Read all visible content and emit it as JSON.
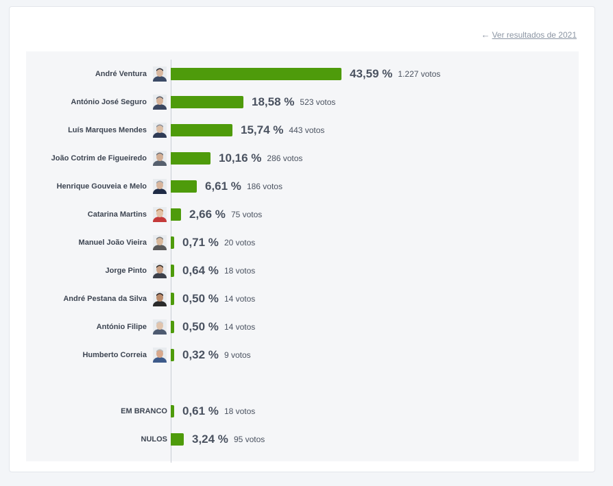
{
  "header": {
    "back_link_label": "Ver resultados de 2021"
  },
  "colors": {
    "bar": "#4e9b0b",
    "label": "#3c4451",
    "link": "#8b95a3"
  },
  "chart_data": {
    "type": "bar",
    "orientation": "horizontal",
    "title": "",
    "xlabel": "",
    "ylabel": "",
    "xlim": [
      0,
      43.59
    ],
    "grid": false,
    "categories": [
      "André Ventura",
      "António José Seguro",
      "Luís Marques Mendes",
      "João Cotrim de Figueiredo",
      "Henrique Gouveia e Melo",
      "Catarina Martins",
      "Manuel João Vieira",
      "Jorge Pinto",
      "André Pestana da Silva",
      "António Filipe",
      "Humberto Correia",
      "EM BRANCO",
      "NULOS"
    ],
    "values": [
      43.59,
      18.58,
      15.74,
      10.16,
      6.61,
      2.66,
      0.71,
      0.64,
      0.5,
      0.5,
      0.32,
      0.61,
      3.24
    ],
    "rows": [
      {
        "name": "André Ventura",
        "pct": "43,59 %",
        "votes": "1.227 votos",
        "value": 43.59,
        "avatar": "candidate-photo",
        "group": "candidate"
      },
      {
        "name": "António José Seguro",
        "pct": "18,58 %",
        "votes": "523 votos",
        "value": 18.58,
        "avatar": "candidate-photo",
        "group": "candidate"
      },
      {
        "name": "Luís Marques Mendes",
        "pct": "15,74 %",
        "votes": "443 votos",
        "value": 15.74,
        "avatar": "candidate-photo",
        "group": "candidate"
      },
      {
        "name": "João Cotrim de Figueiredo",
        "pct": "10,16 %",
        "votes": "286 votos",
        "value": 10.16,
        "avatar": "candidate-photo",
        "group": "candidate"
      },
      {
        "name": "Henrique Gouveia e Melo",
        "pct": "6,61 %",
        "votes": "186 votos",
        "value": 6.61,
        "avatar": "candidate-photo",
        "group": "candidate"
      },
      {
        "name": "Catarina Martins",
        "pct": "2,66 %",
        "votes": "75 votos",
        "value": 2.66,
        "avatar": "candidate-photo",
        "group": "candidate"
      },
      {
        "name": "Manuel João Vieira",
        "pct": "0,71 %",
        "votes": "20 votos",
        "value": 0.71,
        "avatar": "candidate-photo",
        "group": "candidate"
      },
      {
        "name": "Jorge Pinto",
        "pct": "0,64 %",
        "votes": "18 votos",
        "value": 0.64,
        "avatar": "candidate-photo",
        "group": "candidate"
      },
      {
        "name": "André Pestana da Silva",
        "pct": "0,50 %",
        "votes": "14 votos",
        "value": 0.5,
        "avatar": "candidate-photo",
        "group": "candidate"
      },
      {
        "name": "António Filipe",
        "pct": "0,50 %",
        "votes": "14 votos",
        "value": 0.5,
        "avatar": "candidate-photo",
        "group": "candidate"
      },
      {
        "name": "Humberto Correia",
        "pct": "0,32 %",
        "votes": "9 votos",
        "value": 0.32,
        "avatar": "candidate-photo",
        "group": "candidate"
      },
      {
        "name": "EM BRANCO",
        "pct": "0,61 %",
        "votes": "18 votos",
        "value": 0.61,
        "avatar": "",
        "group": "other"
      },
      {
        "name": "NULOS",
        "pct": "3,24 %",
        "votes": "95 votos",
        "value": 3.24,
        "avatar": "",
        "group": "other"
      }
    ]
  }
}
